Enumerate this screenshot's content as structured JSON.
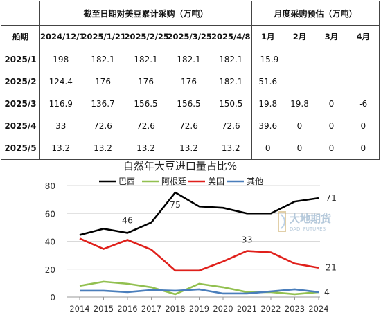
{
  "table": {
    "header_group_left": "截至日期对美豆累计采购（万吨）",
    "header_group_right": "月度采购预估（万吨）",
    "row_header": "船期",
    "date_columns": [
      "2024/12/1",
      "2025/1/21",
      "2025/2/25",
      "2025/3/25",
      "2025/4/8"
    ],
    "month_columns": [
      "1月",
      "2月",
      "3月",
      "4月"
    ],
    "rows": [
      {
        "label": "2025/1",
        "cumulative": [
          "198",
          "182.1",
          "182.1",
          "182.1",
          "182.1"
        ],
        "monthly": [
          "-15.9",
          "",
          "",
          ""
        ]
      },
      {
        "label": "2025/2",
        "cumulative": [
          "124.4",
          "176",
          "176",
          "176",
          "182.1"
        ],
        "monthly": [
          "51.6",
          "",
          "",
          ""
        ]
      },
      {
        "label": "2025/3",
        "cumulative": [
          "116.9",
          "136.7",
          "156.5",
          "156.5",
          "150.5"
        ],
        "monthly": [
          "19.8",
          "19.8",
          "0",
          "-6"
        ]
      },
      {
        "label": "2025/4",
        "cumulative": [
          "33",
          "72.6",
          "72.6",
          "72.6",
          "72.6"
        ],
        "monthly": [
          "39.6",
          "0",
          "0",
          "0"
        ]
      },
      {
        "label": "2025/5",
        "cumulative": [
          "13.2",
          "13.2",
          "13.2",
          "13.2",
          "13.2"
        ],
        "monthly": [
          "0",
          "0",
          "0",
          "0"
        ]
      }
    ]
  },
  "watermark": {
    "cn": "大地期货",
    "en": "DADI FUTURES"
  },
  "chart_data": {
    "type": "line",
    "title": "自然年大豆进口量占比%",
    "x": [
      2014,
      2015,
      2016,
      2017,
      2018,
      2019,
      2020,
      2021,
      2022,
      2023,
      2024
    ],
    "ylim": [
      0,
      80
    ],
    "yticks": [
      0,
      20,
      40,
      60,
      80
    ],
    "legend_position": "top",
    "series": [
      {
        "name": "巴西",
        "color": "#000000",
        "values": [
          44.5,
          49,
          46,
          53.5,
          75,
          65,
          64,
          60,
          60,
          68.5,
          71
        ]
      },
      {
        "name": "阿根廷",
        "color": "#92c050",
        "values": [
          8,
          11,
          9.5,
          7,
          2,
          9.5,
          7,
          3.5,
          3.5,
          2,
          3.5
        ]
      },
      {
        "name": "美国",
        "color": "#e0201b",
        "values": [
          42,
          34.5,
          41,
          34,
          19,
          19,
          25.5,
          33,
          32,
          24,
          21
        ]
      },
      {
        "name": "其他",
        "color": "#4a7ebb",
        "values": [
          4.5,
          4.5,
          3.5,
          5,
          4.5,
          5.5,
          2.5,
          2.5,
          4,
          5.5,
          3.5
        ]
      }
    ],
    "annotations": [
      {
        "text": "46",
        "x": 2016,
        "y": 46
      },
      {
        "text": "75",
        "x": 2018,
        "y": 75
      },
      {
        "text": "33",
        "x": 2021,
        "y": 33
      },
      {
        "text": "71",
        "x": 2024,
        "y": 71
      },
      {
        "text": "21",
        "x": 2024,
        "y": 21
      },
      {
        "text": "4",
        "x": 2024,
        "y": 3.5
      }
    ]
  }
}
